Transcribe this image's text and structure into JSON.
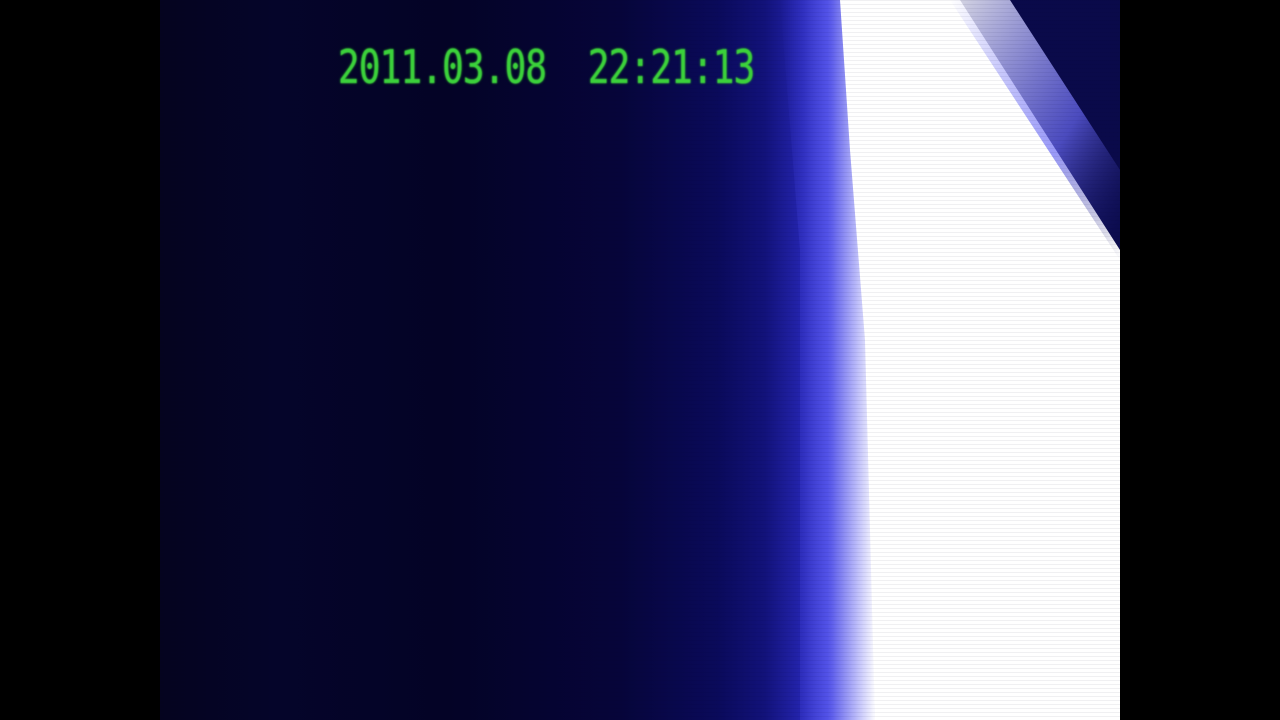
{
  "overlay": {
    "timestamp": "2011.03.08  22:21:13"
  },
  "colors": {
    "letterbox": "#000000",
    "dark_blue": "#05041f",
    "glow_blue": "#4a4ae0",
    "white_light": "#ffffff",
    "timestamp_green": "#3bd13b"
  }
}
